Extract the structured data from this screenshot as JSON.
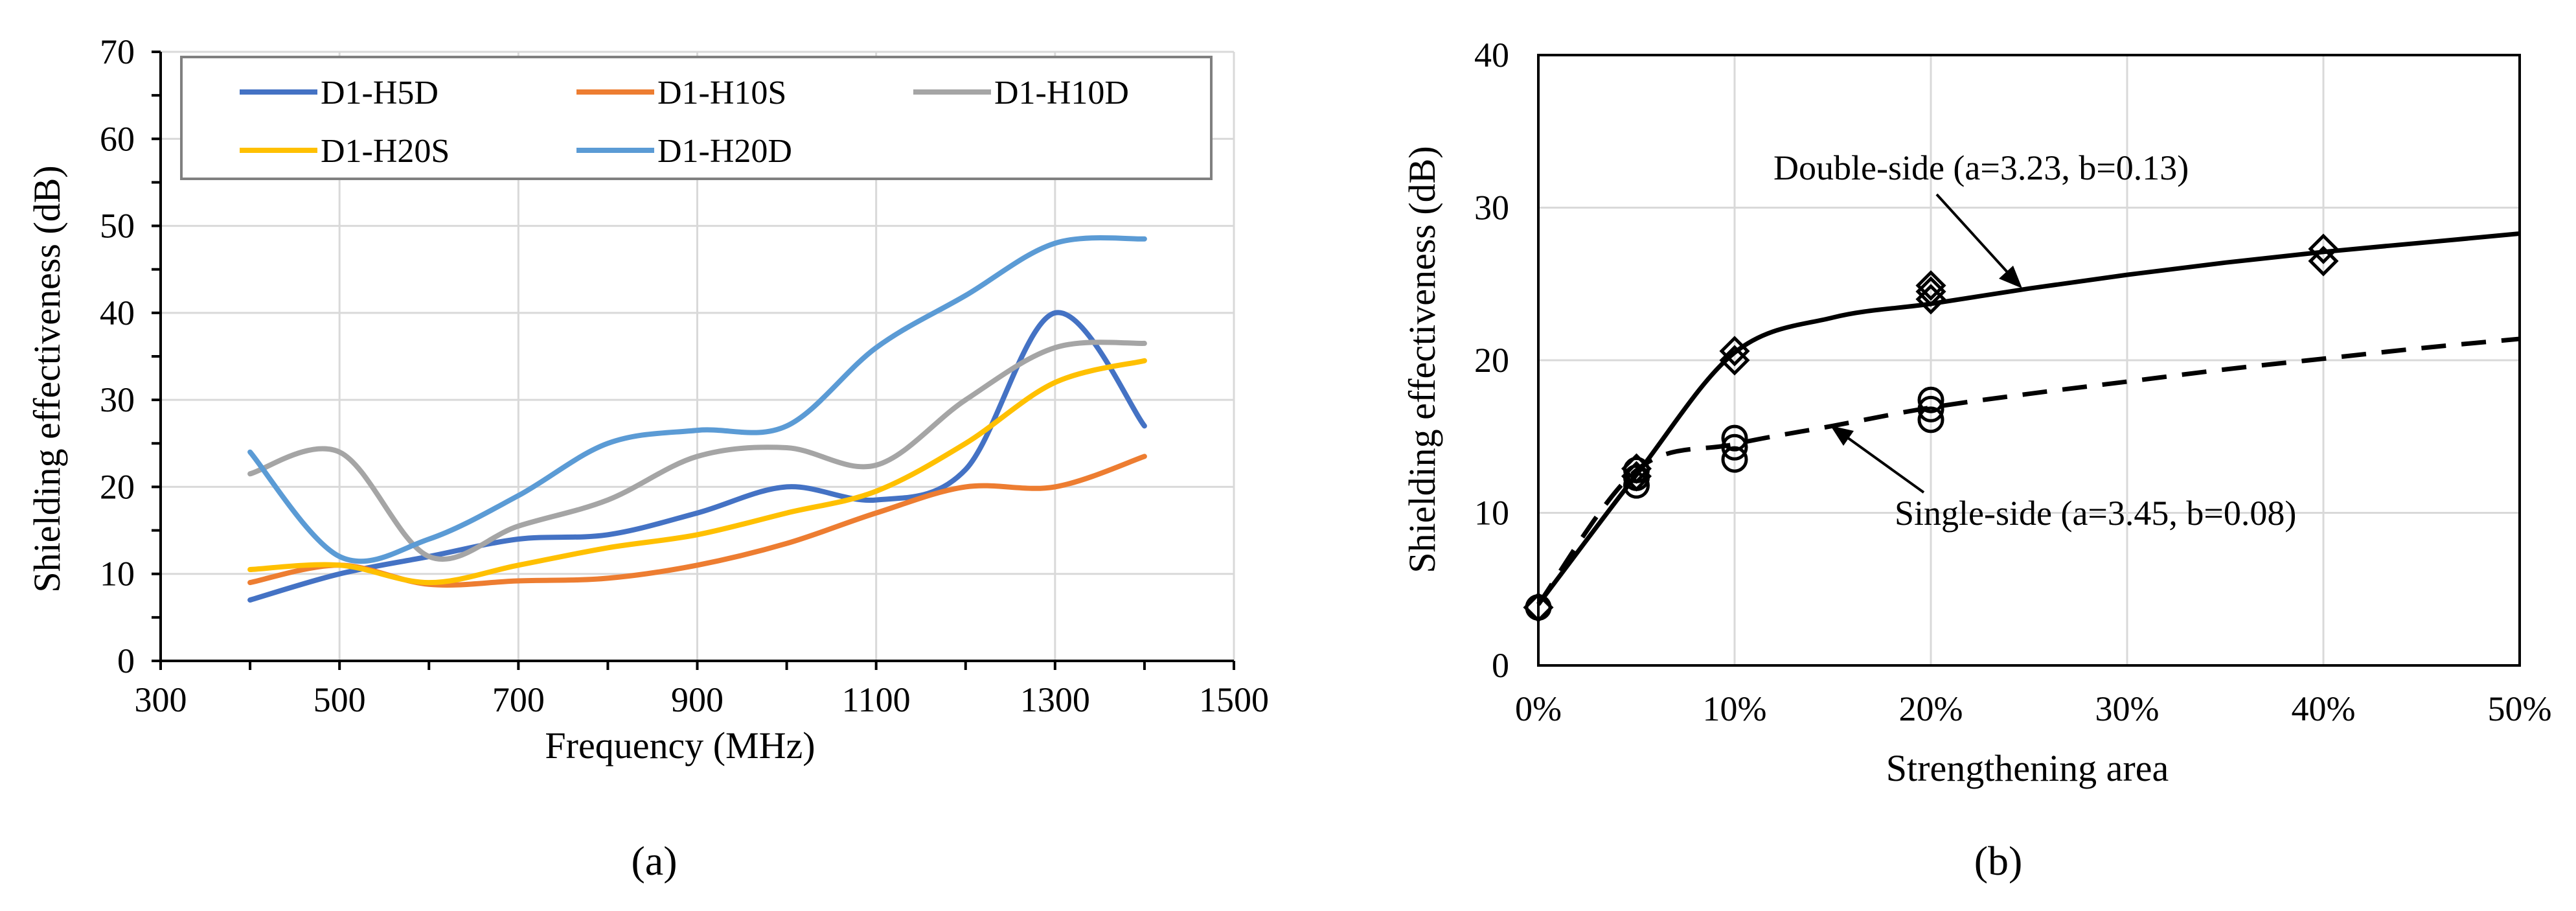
{
  "colors": {
    "D1-H5D": "#4472c4",
    "D1-H10S": "#ed7d31",
    "D1-H10D": "#a5a5a5",
    "D1-H20S": "#ffc000",
    "D1-H20D": "#5b9bd5",
    "grid": "#d9d9d9",
    "axis": "#000000"
  },
  "chart_data": [
    {
      "type": "line",
      "panel_label": "(a)",
      "title": "",
      "xlabel": "Frequency (MHz)",
      "ylabel": "Shielding effectiveness (dB)",
      "xlim": [
        300,
        1500
      ],
      "ylim": [
        0,
        70
      ],
      "xticks": [
        300,
        500,
        700,
        900,
        1100,
        1300,
        1500
      ],
      "yticks": [
        0,
        10,
        20,
        30,
        40,
        50,
        60,
        70
      ],
      "grid": true,
      "legend_position": "top",
      "x": [
        400,
        500,
        600,
        700,
        800,
        900,
        1000,
        1100,
        1200,
        1300,
        1400
      ],
      "series": [
        {
          "name": "D1-H5D",
          "values": [
            7,
            10,
            12,
            14,
            14.5,
            17,
            20,
            18.5,
            22,
            40,
            27
          ]
        },
        {
          "name": "D1-H10S",
          "values": [
            9,
            11,
            8.8,
            9.2,
            9.5,
            11,
            13.5,
            17,
            20,
            20,
            23.5
          ]
        },
        {
          "name": "D1-H10D",
          "values": [
            21.5,
            24,
            12,
            15.5,
            18.5,
            23.5,
            24.5,
            22.5,
            30,
            36,
            36.5
          ]
        },
        {
          "name": "D1-H20S",
          "values": [
            10.5,
            11,
            9,
            11,
            13,
            14.5,
            17,
            19.5,
            25,
            32,
            34.5
          ]
        },
        {
          "name": "D1-H20D",
          "values": [
            24,
            12,
            14,
            19,
            25,
            26.5,
            27,
            36,
            42,
            48,
            48.5
          ]
        }
      ]
    },
    {
      "type": "scatter",
      "panel_label": "(b)",
      "title": "",
      "xlabel": "Strengthening area",
      "ylabel": "Shielding effectiveness (dB)",
      "xlim": [
        0,
        0.5
      ],
      "ylim": [
        0,
        40
      ],
      "xticks": [
        "0%",
        "10%",
        "20%",
        "30%",
        "40%",
        "50%"
      ],
      "yticks": [
        0,
        10,
        20,
        30,
        40
      ],
      "grid": true,
      "series": [
        {
          "name": "Double-side",
          "marker": "diamond",
          "points": [
            [
              0,
              3.8
            ],
            [
              0.05,
              12.4
            ],
            [
              0.05,
              12.9
            ],
            [
              0.1,
              20
            ],
            [
              0.1,
              20.6
            ],
            [
              0.2,
              24
            ],
            [
              0.2,
              24.5
            ],
            [
              0.2,
              24.9
            ],
            [
              0.4,
              26.5
            ],
            [
              0.4,
              27.3
            ]
          ]
        },
        {
          "name": "Single-side",
          "marker": "circle",
          "points": [
            [
              0,
              3.8
            ],
            [
              0.05,
              11.8
            ],
            [
              0.05,
              12.3
            ],
            [
              0.05,
              12.8
            ],
            [
              0.1,
              13.5
            ],
            [
              0.1,
              14.3
            ],
            [
              0.1,
              14.9
            ],
            [
              0.2,
              16.1
            ],
            [
              0.2,
              16.8
            ],
            [
              0.2,
              17.4
            ]
          ]
        }
      ],
      "fits": [
        {
          "name": "Double-side",
          "style": "solid",
          "label": "Double-side (a=3.23, b=0.13)",
          "x": [
            0,
            0.05,
            0.1,
            0.15,
            0.2,
            0.25,
            0.3,
            0.35,
            0.4,
            0.45,
            0.5
          ],
          "y": [
            4,
            12.5,
            20.5,
            22.8,
            23.7,
            24.7,
            25.6,
            26.4,
            27.1,
            27.7,
            28.3
          ]
        },
        {
          "name": "Single-side",
          "style": "dashed",
          "label": "Single-side (a=3.45, b=0.08)",
          "x": [
            0,
            0.05,
            0.1,
            0.15,
            0.2,
            0.25,
            0.3,
            0.35,
            0.4,
            0.45,
            0.5
          ],
          "y": [
            4,
            12.8,
            14.5,
            15.7,
            16.9,
            17.8,
            18.6,
            19.4,
            20.1,
            20.8,
            21.4
          ]
        }
      ]
    }
  ]
}
